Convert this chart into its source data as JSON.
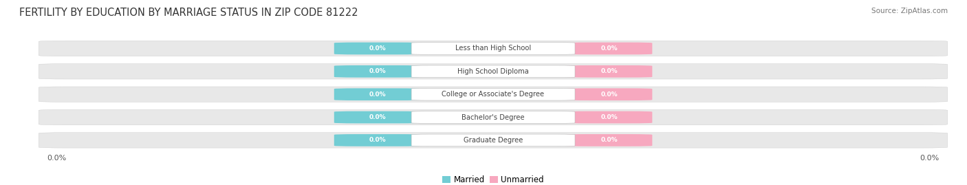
{
  "title": "FERTILITY BY EDUCATION BY MARRIAGE STATUS IN ZIP CODE 81222",
  "source": "Source: ZipAtlas.com",
  "categories": [
    "Less than High School",
    "High School Diploma",
    "College or Associate's Degree",
    "Bachelor's Degree",
    "Graduate Degree"
  ],
  "married_values": [
    0.0,
    0.0,
    0.0,
    0.0,
    0.0
  ],
  "unmarried_values": [
    0.0,
    0.0,
    0.0,
    0.0,
    0.0
  ],
  "married_color": "#72CDD4",
  "unmarried_color": "#F7A8BF",
  "row_bg_color": "#E8E8E8",
  "category_label_color": "#444444",
  "title_color": "#333333",
  "title_fontsize": 10.5,
  "figsize": [
    14.06,
    2.69
  ],
  "dpi": 100,
  "legend_labels": [
    "Married",
    "Unmarried"
  ],
  "value_label": "0.0%"
}
